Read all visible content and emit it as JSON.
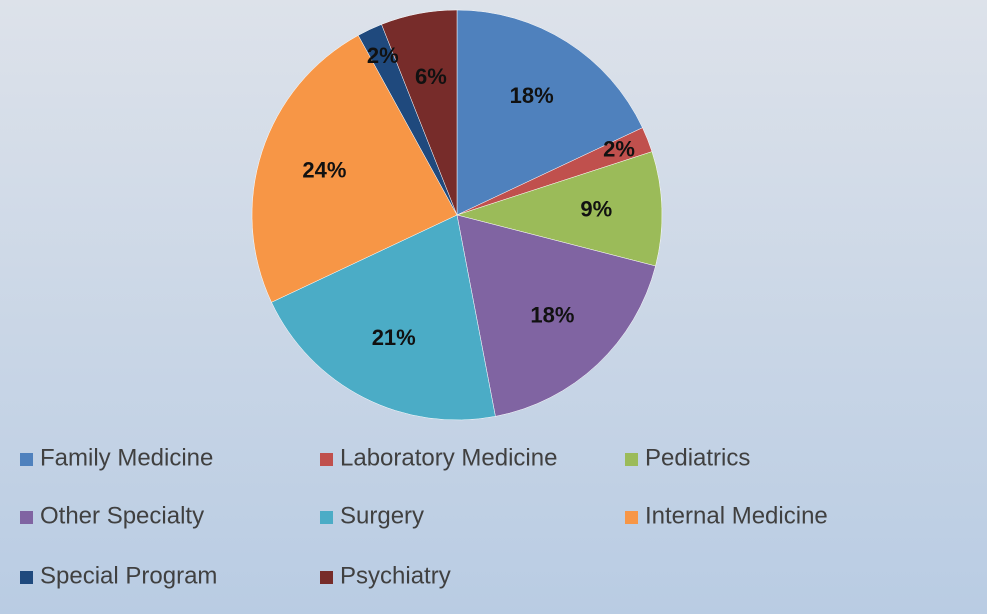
{
  "chart_data": {
    "type": "pie",
    "categories": [
      "Family Medicine",
      "Laboratory Medicine",
      "Pediatrics",
      "Other Specialty",
      "Surgery",
      "Internal Medicine",
      "Special Program",
      "Psychiatry"
    ],
    "values": [
      18,
      2,
      9,
      18,
      21,
      24,
      2,
      6
    ],
    "value_labels": [
      "18%",
      "2%",
      "9%",
      "18%",
      "21%",
      "24%",
      "2%",
      "6%"
    ],
    "colors": [
      "#4f81bd",
      "#c0504d",
      "#9bbb59",
      "#8064a2",
      "#4bacc6",
      "#f79646",
      "#1f497d",
      "#772c2a"
    ],
    "legend": "bottom"
  }
}
